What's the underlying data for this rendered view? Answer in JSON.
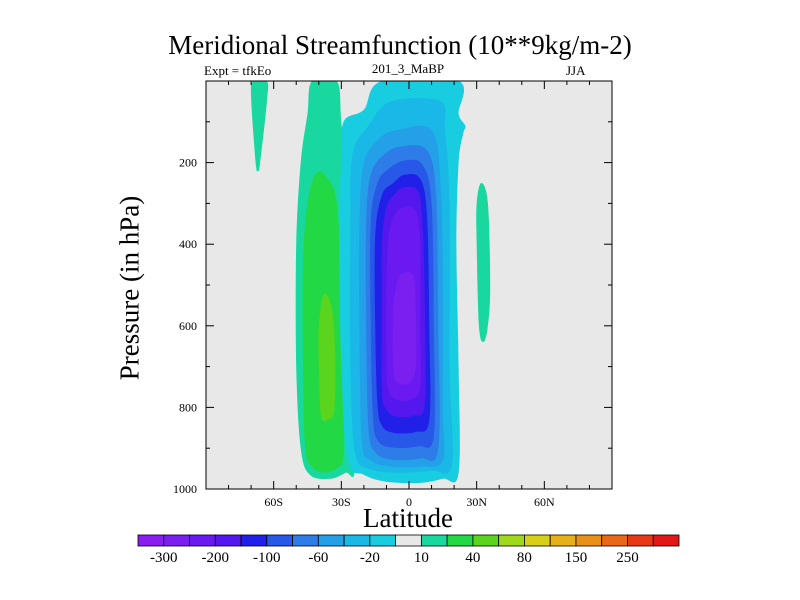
{
  "chart_data": {
    "type": "heatmap",
    "title": "Meridional Streamfunction (10**9kg/m-2)",
    "subtitle_left": "Expt = tfkEo",
    "subtitle_center": "201_3_MaBP",
    "subtitle_right": "JJA",
    "xlabel": "Latitude",
    "ylabel": "Pressure (in hPa)",
    "xlim": [
      -90,
      90
    ],
    "ylim": [
      1000,
      0
    ],
    "x_ticks": [
      {
        "value": -60,
        "label": "60S"
      },
      {
        "value": -30,
        "label": "30S"
      },
      {
        "value": 0,
        "label": "0"
      },
      {
        "value": 30,
        "label": "30N"
      },
      {
        "value": 60,
        "label": "60N"
      }
    ],
    "y_ticks": [
      {
        "value": 200,
        "label": "200"
      },
      {
        "value": 400,
        "label": "400"
      },
      {
        "value": 600,
        "label": "600"
      },
      {
        "value": 800,
        "label": "800"
      },
      {
        "value": 1000,
        "label": "1000"
      }
    ],
    "background_color": "#e8e8e8",
    "colorbar": {
      "colors": [
        "#8a1ef0",
        "#7a1ff0",
        "#6a1af0",
        "#5418ef",
        "#2020e8",
        "#2858e8",
        "#2e7ce8",
        "#24a0e8",
        "#1ab8e6",
        "#18cde0",
        "#e8e8e8",
        "#18d8a0",
        "#22d844",
        "#5ad41c",
        "#a0d81c",
        "#d8d018",
        "#e8b018",
        "#e89018",
        "#e86818",
        "#e83818",
        "#e01818"
      ],
      "labels": [
        "-300",
        "-200",
        "-100",
        "-60",
        "-20",
        "10",
        "40",
        "80",
        "150",
        "250"
      ]
    },
    "features": [
      {
        "name": "positive cell 60S",
        "level": 10,
        "color": "#18d8a0",
        "outline": [
          [
            -69,
            0
          ],
          [
            -63,
            0
          ],
          [
            -63,
            50
          ],
          [
            -66,
            200
          ],
          [
            -67,
            220
          ],
          [
            -68,
            200
          ],
          [
            -70,
            40
          ]
        ]
      },
      {
        "name": "positive cell 30S outer",
        "level": 10,
        "color": "#18d8a0",
        "outline": [
          [
            -43,
            0
          ],
          [
            -32,
            0
          ],
          [
            -30,
            100
          ],
          [
            -27,
            300
          ],
          [
            -25,
            700
          ],
          [
            -24,
            950
          ],
          [
            -28,
            960
          ],
          [
            -35,
            975
          ],
          [
            -44,
            965
          ],
          [
            -48,
            900
          ],
          [
            -50,
            700
          ],
          [
            -50,
            400
          ],
          [
            -48,
            200
          ],
          [
            -45,
            80
          ]
        ]
      },
      {
        "name": "positive cell 30S middle",
        "level": 40,
        "color": "#22d844",
        "outline": [
          [
            -41,
            225
          ],
          [
            -36,
            240
          ],
          [
            -32,
            300
          ],
          [
            -30,
            500
          ],
          [
            -29,
            800
          ],
          [
            -29,
            920
          ],
          [
            -32,
            950
          ],
          [
            -38,
            960
          ],
          [
            -43,
            945
          ],
          [
            -46,
            900
          ],
          [
            -47,
            700
          ],
          [
            -47,
            450
          ],
          [
            -45,
            300
          ]
        ]
      },
      {
        "name": "positive cell 30S core",
        "level": 80,
        "color": "#5ad41c",
        "outline": [
          [
            -38,
            525
          ],
          [
            -35,
            540
          ],
          [
            -33,
            620
          ],
          [
            -33,
            800
          ],
          [
            -36,
            830
          ],
          [
            -39,
            820
          ],
          [
            -40,
            700
          ],
          [
            -40,
            600
          ]
        ]
      },
      {
        "name": "positive cell 30N",
        "level": 10,
        "color": "#18d8a0",
        "outline": [
          [
            32,
            250
          ],
          [
            35,
            300
          ],
          [
            36,
            500
          ],
          [
            35,
            600
          ],
          [
            33,
            640
          ],
          [
            31,
            600
          ],
          [
            30,
            400
          ],
          [
            30,
            300
          ]
        ]
      },
      {
        "name": "negative cell level -20",
        "level": -20,
        "color": "#18cde0",
        "outline": [
          [
            -12,
            0
          ],
          [
            22,
            0
          ],
          [
            22,
            80
          ],
          [
            25,
            110
          ],
          [
            24,
            130
          ],
          [
            22,
            200
          ],
          [
            21,
            400
          ],
          [
            22,
            700
          ],
          [
            22,
            960
          ],
          [
            15,
            975
          ],
          [
            5,
            985
          ],
          [
            -10,
            982
          ],
          [
            -20,
            965
          ],
          [
            -27,
            930
          ],
          [
            -30,
            700
          ],
          [
            -31,
            350
          ],
          [
            -30,
            200
          ],
          [
            -29,
            100
          ],
          [
            -20,
            70
          ]
        ]
      },
      {
        "name": "negative cell level -60",
        "level": -60,
        "color": "#1ab8e6",
        "outline": [
          [
            -8,
            50
          ],
          [
            14,
            50
          ],
          [
            16,
            120
          ],
          [
            18,
            300
          ],
          [
            18,
            700
          ],
          [
            19,
            940
          ],
          [
            10,
            955
          ],
          [
            -5,
            960
          ],
          [
            -18,
            950
          ],
          [
            -24,
            910
          ],
          [
            -26,
            700
          ],
          [
            -26,
            350
          ],
          [
            -25,
            180
          ],
          [
            -18,
            110
          ]
        ]
      },
      {
        "name": "negative cell level -100",
        "level": -100,
        "color": "#24a0e8",
        "outline": [
          [
            -5,
            120
          ],
          [
            10,
            120
          ],
          [
            14,
            250
          ],
          [
            15,
            500
          ],
          [
            15,
            800
          ],
          [
            15,
            930
          ],
          [
            5,
            945
          ],
          [
            -8,
            945
          ],
          [
            -17,
            930
          ],
          [
            -21,
            880
          ],
          [
            -22,
            600
          ],
          [
            -22,
            350
          ],
          [
            -20,
            200
          ],
          [
            -13,
            140
          ]
        ]
      },
      {
        "name": "negative cell level -150",
        "level": -150,
        "color": "#2e7ce8",
        "outline": [
          [
            -3,
            160
          ],
          [
            8,
            170
          ],
          [
            12,
            280
          ],
          [
            13,
            600
          ],
          [
            13,
            900
          ],
          [
            5,
            925
          ],
          [
            -8,
            928
          ],
          [
            -15,
            910
          ],
          [
            -18,
            850
          ],
          [
            -19,
            600
          ],
          [
            -19,
            350
          ],
          [
            -17,
            230
          ],
          [
            -11,
            180
          ]
        ]
      },
      {
        "name": "negative cell level -200",
        "level": -200,
        "color": "#2858e8",
        "outline": [
          [
            -2,
            195
          ],
          [
            6,
            205
          ],
          [
            10,
            300
          ],
          [
            11,
            600
          ],
          [
            11,
            870
          ],
          [
            4,
            895
          ],
          [
            -8,
            898
          ],
          [
            -14,
            880
          ],
          [
            -16,
            820
          ],
          [
            -17,
            600
          ],
          [
            -17,
            350
          ],
          [
            -14,
            250
          ],
          [
            -9,
            215
          ]
        ]
      },
      {
        "name": "negative cell level -250",
        "level": -250,
        "color": "#2020e8",
        "outline": [
          [
            -2,
            230
          ],
          [
            5,
            240
          ],
          [
            8,
            330
          ],
          [
            9,
            600
          ],
          [
            9,
            830
          ],
          [
            3,
            860
          ],
          [
            -7,
            862
          ],
          [
            -12,
            845
          ],
          [
            -14,
            790
          ],
          [
            -15,
            600
          ],
          [
            -15,
            380
          ],
          [
            -12,
            280
          ],
          [
            -7,
            250
          ]
        ]
      },
      {
        "name": "negative cell level -300",
        "level": -300,
        "color": "#5418ef",
        "outline": [
          [
            -2,
            260
          ],
          [
            4,
            270
          ],
          [
            6,
            350
          ],
          [
            7,
            550
          ],
          [
            7,
            790
          ],
          [
            2,
            820
          ],
          [
            -6,
            822
          ],
          [
            -10,
            805
          ],
          [
            -12,
            760
          ],
          [
            -12,
            550
          ],
          [
            -12,
            400
          ],
          [
            -10,
            310
          ],
          [
            -6,
            275
          ]
        ]
      },
      {
        "name": "negative cell level -350",
        "level": -350,
        "color": "#6a1af0",
        "outline": [
          [
            -2,
            310
          ],
          [
            3,
            320
          ],
          [
            5,
            400
          ],
          [
            5,
            600
          ],
          [
            5,
            750
          ],
          [
            1,
            780
          ],
          [
            -5,
            782
          ],
          [
            -9,
            760
          ],
          [
            -10,
            700
          ],
          [
            -10,
            500
          ],
          [
            -9,
            380
          ],
          [
            -6,
            325
          ]
        ]
      },
      {
        "name": "negative cell core",
        "level": -400,
        "color": "#7a1ff0",
        "outline": [
          [
            -2,
            470
          ],
          [
            2,
            480
          ],
          [
            3,
            560
          ],
          [
            3,
            700
          ],
          [
            0,
            740
          ],
          [
            -5,
            740
          ],
          [
            -7,
            700
          ],
          [
            -7,
            560
          ],
          [
            -5,
            490
          ]
        ]
      }
    ]
  }
}
